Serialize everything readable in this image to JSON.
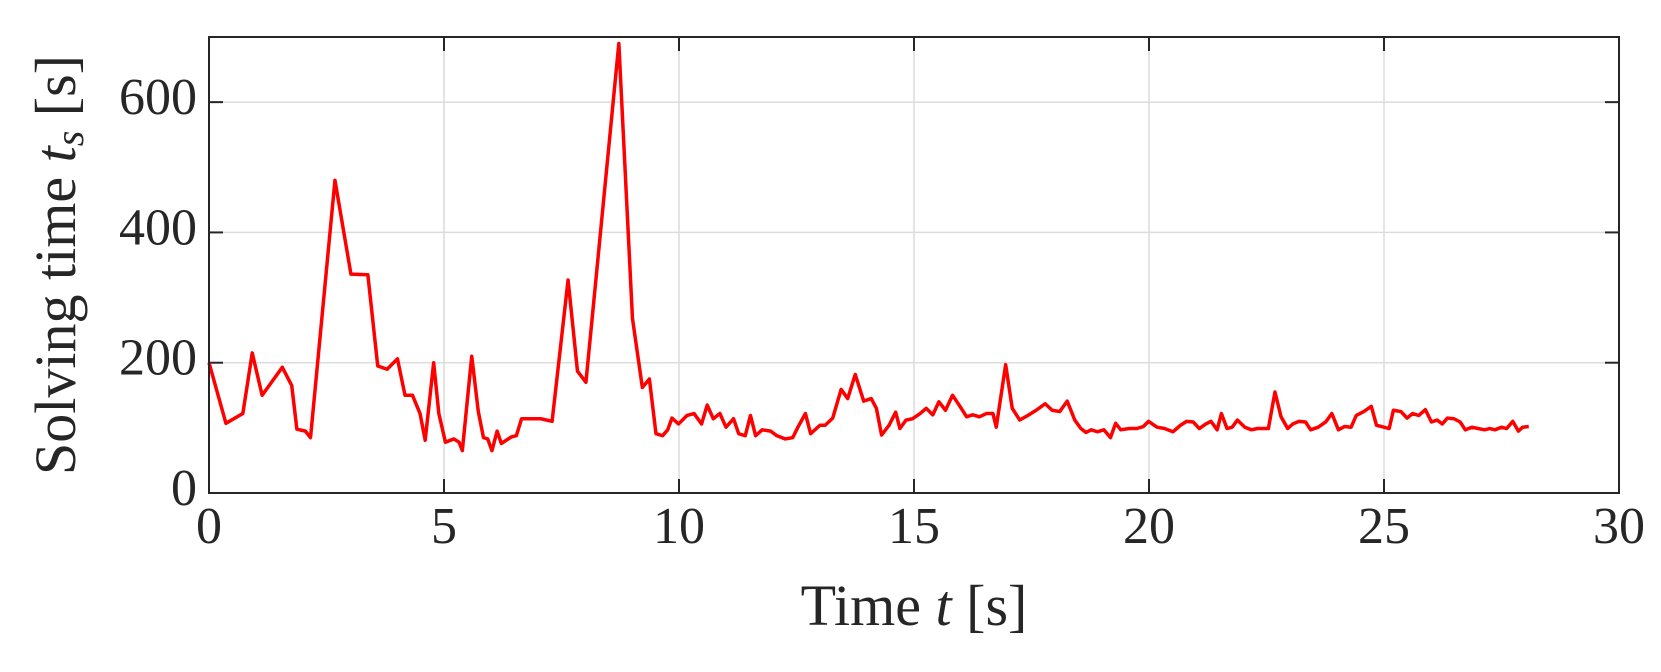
{
  "chart_data": {
    "type": "line",
    "ylabel": [
      "Solving time ",
      "t",
      "s",
      " [s]"
    ],
    "xlabel": [
      "Time ",
      "t",
      " [s]"
    ],
    "color": "#ff0000",
    "grid": true,
    "xlim": [
      0,
      30
    ],
    "xticks": [
      0,
      5,
      10,
      15,
      20,
      25,
      30
    ],
    "ylim": [
      0,
      700
    ],
    "yticks": [
      0,
      200,
      400,
      600
    ],
    "x": [
      0,
      0.36,
      0.72,
      0.92,
      1.13,
      1.33,
      1.56,
      1.76,
      1.87,
      2.05,
      2.16,
      2.68,
      3.02,
      3.38,
      3.59,
      3.79,
      4.01,
      4.17,
      4.33,
      4.49,
      4.6,
      4.78,
      4.89,
      5.03,
      5.21,
      5.32,
      5.39,
      5.59,
      5.73,
      5.84,
      5.93,
      6.02,
      6.13,
      6.22,
      6.43,
      6.54,
      6.65,
      7.06,
      7.3,
      7.64,
      7.84,
      8.02,
      8.72,
      9.01,
      9.22,
      9.37,
      9.51,
      9.65,
      9.76,
      9.85,
      9.99,
      10.17,
      10.32,
      10.48,
      10.6,
      10.73,
      10.87,
      11,
      11.16,
      11.27,
      11.41,
      11.52,
      11.63,
      11.77,
      11.95,
      12.08,
      12.26,
      12.42,
      12.53,
      12.69,
      12.8,
      13,
      13.11,
      13.27,
      13.45,
      13.59,
      13.75,
      13.93,
      14.09,
      14.2,
      14.31,
      14.47,
      14.61,
      14.7,
      14.83,
      14.97,
      15.13,
      15.26,
      15.4,
      15.53,
      15.67,
      15.82,
      15.96,
      16.12,
      16.25,
      16.39,
      16.54,
      16.68,
      16.75,
      16.95,
      17.09,
      17.25,
      17.42,
      17.6,
      17.79,
      17.94,
      18.1,
      18.26,
      18.42,
      18.55,
      18.66,
      18.77,
      18.9,
      19.04,
      19.18,
      19.29,
      19.4,
      19.58,
      19.74,
      19.88,
      19.99,
      20.17,
      20.33,
      20.51,
      20.67,
      20.8,
      20.94,
      21.07,
      21.21,
      21.32,
      21.45,
      21.54,
      21.66,
      21.77,
      21.88,
      22.04,
      22.18,
      22.31,
      22.43,
      22.54,
      22.68,
      22.81,
      22.95,
      23.06,
      23.19,
      23.33,
      23.44,
      23.6,
      23.76,
      23.89,
      24.03,
      24.16,
      24.3,
      24.41,
      24.57,
      24.73,
      24.84,
      25,
      25.11,
      25.2,
      25.36,
      25.49,
      25.61,
      25.74,
      25.88,
      26.01,
      26.13,
      26.24,
      26.35,
      26.49,
      26.62,
      26.73,
      26.87,
      27,
      27.14,
      27.25,
      27.36,
      27.5,
      27.61,
      27.74,
      27.86,
      27.95,
      28.08
    ],
    "values": [
      200,
      107,
      122,
      215,
      150,
      170,
      193,
      165,
      98,
      95,
      85,
      480,
      336,
      335,
      195,
      190,
      206,
      150,
      150,
      122,
      81,
      200,
      122,
      78,
      83,
      78,
      65,
      210,
      125,
      85,
      83,
      65,
      95,
      76,
      86,
      88,
      114,
      114,
      110,
      327,
      187,
      170,
      690,
      268,
      162,
      175,
      91,
      88,
      97,
      115,
      106,
      119,
      122,
      106,
      135,
      114,
      122,
      101,
      114,
      91,
      88,
      119,
      88,
      97,
      95,
      88,
      83,
      85,
      101,
      122,
      91,
      104,
      104,
      115,
      159,
      145,
      182,
      141,
      145,
      130,
      89,
      104,
      124,
      99,
      112,
      114,
      122,
      130,
      120,
      140,
      127,
      150,
      135,
      117,
      120,
      117,
      122,
      122,
      101,
      197,
      130,
      112,
      119,
      127,
      137,
      127,
      125,
      141,
      112,
      99,
      93,
      97,
      94,
      97,
      85,
      107,
      97,
      99,
      99,
      102,
      110,
      101,
      99,
      94,
      104,
      110,
      109,
      99,
      106,
      110,
      97,
      122,
      99,
      101,
      112,
      101,
      97,
      99,
      99,
      99,
      155,
      117,
      99,
      106,
      110,
      109,
      97,
      101,
      109,
      122,
      97,
      102,
      101,
      119,
      125,
      133,
      104,
      101,
      99,
      127,
      125,
      115,
      122,
      119,
      128,
      109,
      112,
      106,
      115,
      114,
      109,
      97,
      101,
      99,
      97,
      99,
      97,
      101,
      99,
      110,
      95,
      101,
      102
    ]
  }
}
